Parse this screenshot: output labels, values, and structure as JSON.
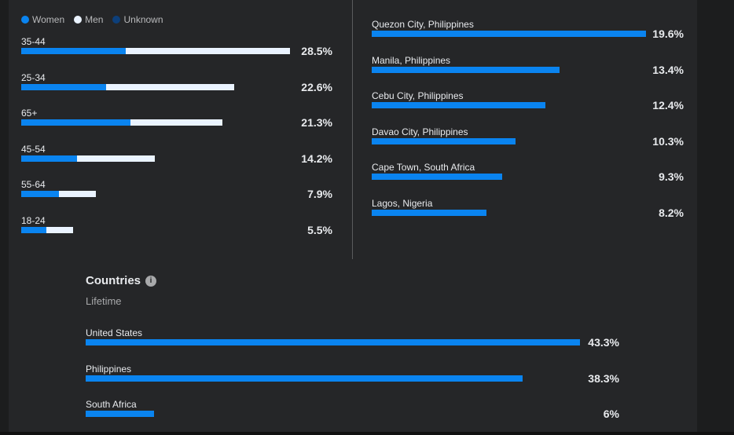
{
  "legend": [
    {
      "label": "Women",
      "color": "#0a84f0"
    },
    {
      "label": "Men",
      "color": "#eaf3ff"
    },
    {
      "label": "Unknown",
      "color": "#0d3f7a"
    }
  ],
  "age_groups": [
    {
      "label": "35-44",
      "pct": 28.5,
      "pct_label": "28.5%",
      "women_share": 0.39
    },
    {
      "label": "25-34",
      "pct": 22.6,
      "pct_label": "22.6%",
      "women_share": 0.4
    },
    {
      "label": "65+",
      "pct": 21.3,
      "pct_label": "21.3%",
      "women_share": 0.545
    },
    {
      "label": "45-54",
      "pct": 14.2,
      "pct_label": "14.2%",
      "women_share": 0.415
    },
    {
      "label": "55-64",
      "pct": 7.9,
      "pct_label": "7.9%",
      "women_share": 0.505
    },
    {
      "label": "18-24",
      "pct": 5.5,
      "pct_label": "5.5%",
      "women_share": 0.49
    }
  ],
  "cities": [
    {
      "label": "Quezon City, Philippines",
      "pct": 19.6,
      "pct_label": "19.6%"
    },
    {
      "label": "Manila, Philippines",
      "pct": 13.4,
      "pct_label": "13.4%"
    },
    {
      "label": "Cebu City, Philippines",
      "pct": 12.4,
      "pct_label": "12.4%"
    },
    {
      "label": "Davao City, Philippines",
      "pct": 10.3,
      "pct_label": "10.3%"
    },
    {
      "label": "Cape Town, South Africa",
      "pct": 9.3,
      "pct_label": "9.3%"
    },
    {
      "label": "Lagos, Nigeria",
      "pct": 8.2,
      "pct_label": "8.2%"
    }
  ],
  "countries": {
    "title": "Countries",
    "info_icon": "i",
    "subtitle": "Lifetime",
    "items": [
      {
        "label": "United States",
        "pct": 43.3,
        "pct_label": "43.3%"
      },
      {
        "label": "Philippines",
        "pct": 38.3,
        "pct_label": "38.3%"
      },
      {
        "label": "South Africa",
        "pct": 6,
        "pct_label": "6%"
      }
    ]
  }
}
